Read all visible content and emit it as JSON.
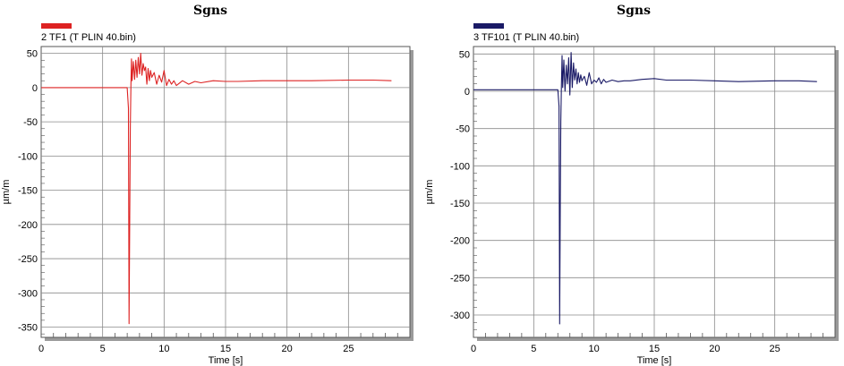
{
  "chart_data": [
    {
      "type": "line",
      "title": "Sgns",
      "legend": "2  TF1 (T PLIN 40.bin)",
      "color": "#dd2222",
      "xlabel": "Time [s]",
      "ylabel": "µm/m",
      "xlim": [
        0,
        30
      ],
      "ylim": [
        -365,
        60
      ],
      "x_ticks": [
        "0",
        "5",
        "10",
        "15",
        "20",
        "25"
      ],
      "y_ticks": [
        "50",
        "0",
        "-50",
        "-100",
        "-150",
        "-200",
        "-250",
        "-300",
        "-350"
      ],
      "grid": true,
      "series": [
        {
          "x": [
            0,
            7.0,
            7.1,
            7.15,
            7.2,
            7.25,
            7.3,
            7.35,
            7.4,
            7.5,
            7.6,
            7.7,
            7.8,
            7.9,
            8.0,
            8.1,
            8.2,
            8.3,
            8.4,
            8.5,
            8.6,
            8.7,
            8.8,
            8.9,
            9.0,
            9.2,
            9.4,
            9.6,
            9.8,
            10.0,
            10.2,
            10.4,
            10.6,
            10.8,
            11.0,
            11.5,
            12.0,
            12.5,
            13.0,
            14.0,
            15.0,
            16.0,
            18.0,
            20.0,
            22.0,
            25.0,
            27.0,
            28.5
          ],
          "y": [
            0,
            0,
            -30,
            -345,
            -200,
            -60,
            5,
            42,
            10,
            38,
            12,
            40,
            15,
            44,
            20,
            50,
            18,
            35,
            25,
            30,
            5,
            28,
            10,
            25,
            15,
            22,
            5,
            18,
            8,
            25,
            3,
            12,
            5,
            10,
            3,
            10,
            5,
            9,
            7,
            10,
            9,
            9,
            10,
            10,
            10,
            11,
            11,
            10
          ]
        }
      ]
    },
    {
      "type": "line",
      "title": "Sgns",
      "legend": "3  TF101 (T PLIN 40.bin)",
      "color": "#1a1a66",
      "xlabel": "Time [s]",
      "ylabel": "µm/m",
      "xlim": [
        0,
        30
      ],
      "ylim": [
        -330,
        60
      ],
      "x_ticks": [
        "0",
        "5",
        "10",
        "15",
        "20",
        "25"
      ],
      "y_ticks": [
        "50",
        "0",
        "-50",
        "-100",
        "-150",
        "-200",
        "-250",
        "-300"
      ],
      "grid": true,
      "series": [
        {
          "x": [
            0,
            7.0,
            7.1,
            7.15,
            7.2,
            7.25,
            7.3,
            7.35,
            7.4,
            7.5,
            7.6,
            7.7,
            7.8,
            7.9,
            8.0,
            8.1,
            8.2,
            8.3,
            8.4,
            8.5,
            8.6,
            8.7,
            8.8,
            8.9,
            9.0,
            9.2,
            9.4,
            9.6,
            9.8,
            10.0,
            10.2,
            10.4,
            10.6,
            10.8,
            11.0,
            11.5,
            12.0,
            12.5,
            13.0,
            14.0,
            15.0,
            16.0,
            18.0,
            20.0,
            22.0,
            25.0,
            27.0,
            28.5
          ],
          "y": [
            2,
            2,
            -20,
            -312,
            -150,
            -40,
            10,
            48,
            5,
            42,
            0,
            35,
            10,
            45,
            -5,
            52,
            5,
            38,
            15,
            30,
            10,
            25,
            12,
            22,
            14,
            20,
            8,
            25,
            10,
            15,
            12,
            18,
            10,
            16,
            12,
            15,
            13,
            14,
            14,
            16,
            17,
            15,
            15,
            14,
            13,
            14,
            14,
            13
          ]
        }
      ]
    }
  ]
}
